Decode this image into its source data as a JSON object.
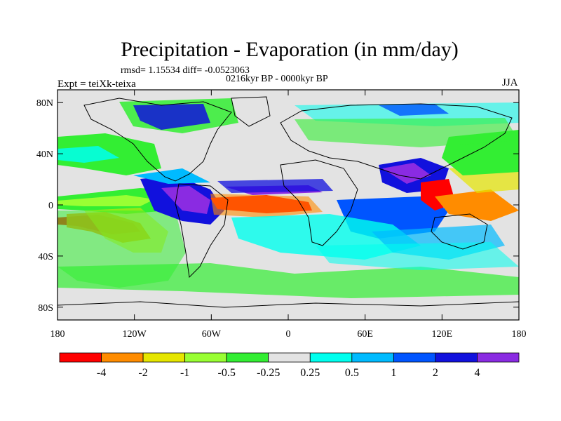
{
  "header": {
    "title": "Precipitation - Evaporation (in mm/day)",
    "stats": "rmsd= 1.15534  diff= -0.0523063",
    "period": "0216kyr BP - 0000kyr BP",
    "experiment": "Expt = teiXk-teixa",
    "season": "JJA"
  },
  "map": {
    "projection": "cylindrical-equidistant",
    "lon_range": [
      -180,
      180
    ],
    "lat_range": [
      -90,
      90
    ],
    "y_ticks": [
      "80N",
      "40N",
      "0",
      "40S",
      "80S"
    ],
    "x_ticks": [
      "180",
      "120W",
      "60W",
      "0",
      "60E",
      "120E",
      "180"
    ],
    "background_color": "#e3e3e3"
  },
  "colorbar": {
    "colors": [
      "#ff0000",
      "#ff8c00",
      "#e6e600",
      "#99ff33",
      "#33ee33",
      "#e3e3e3",
      "#00ffee",
      "#00bbff",
      "#0055ff",
      "#1111dd",
      "#8a2be2"
    ],
    "labels": [
      "-4",
      "-2",
      "-1",
      "-0.5",
      "-0.25",
      "0.25",
      "0.5",
      "1",
      "2",
      "4"
    ]
  }
}
